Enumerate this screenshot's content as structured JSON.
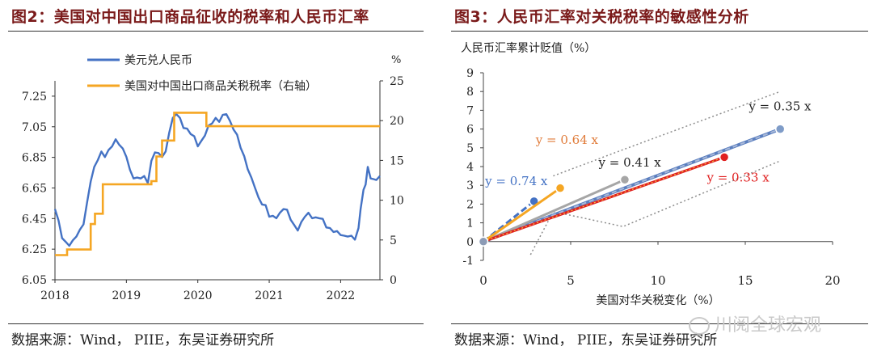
{
  "left": {
    "title": "图2：美国对中国出口商品征收的税率和人民币汇率",
    "source": "数据来源：Wind， PIIE，东吴证券研究所",
    "chart_data": {
      "type": "line",
      "x_ticks": [
        "2018",
        "2019",
        "2020",
        "2021",
        "2022"
      ],
      "y_left": {
        "ticks": [
          "6.05",
          "6.25",
          "6.45",
          "6.65",
          "6.85",
          "7.05",
          "7.25"
        ],
        "range": [
          6.05,
          7.35
        ]
      },
      "y_right": {
        "unit": "%",
        "ticks": [
          "0",
          "5",
          "10",
          "15",
          "20",
          "25"
        ],
        "range": [
          0,
          25
        ]
      },
      "legend_position": "top-left",
      "series": [
        {
          "name": "美元兑人民币",
          "axis": "left",
          "color": "#4472c4",
          "points": [
            [
              2018.0,
              6.52
            ],
            [
              2018.05,
              6.43
            ],
            [
              2018.1,
              6.33
            ],
            [
              2018.15,
              6.29
            ],
            [
              2018.2,
              6.28
            ],
            [
              2018.25,
              6.3
            ],
            [
              2018.3,
              6.34
            ],
            [
              2018.35,
              6.37
            ],
            [
              2018.4,
              6.42
            ],
            [
              2018.45,
              6.55
            ],
            [
              2018.5,
              6.7
            ],
            [
              2018.55,
              6.78
            ],
            [
              2018.6,
              6.84
            ],
            [
              2018.65,
              6.88
            ],
            [
              2018.7,
              6.86
            ],
            [
              2018.75,
              6.89
            ],
            [
              2018.8,
              6.93
            ],
            [
              2018.85,
              6.96
            ],
            [
              2018.9,
              6.94
            ],
            [
              2018.95,
              6.9
            ],
            [
              2019.0,
              6.86
            ],
            [
              2019.05,
              6.76
            ],
            [
              2019.1,
              6.72
            ],
            [
              2019.15,
              6.71
            ],
            [
              2019.2,
              6.72
            ],
            [
              2019.25,
              6.72
            ],
            [
              2019.3,
              6.69
            ],
            [
              2019.35,
              6.82
            ],
            [
              2019.4,
              6.89
            ],
            [
              2019.45,
              6.87
            ],
            [
              2019.5,
              6.86
            ],
            [
              2019.55,
              6.88
            ],
            [
              2019.6,
              7.02
            ],
            [
              2019.65,
              7.1
            ],
            [
              2019.7,
              7.14
            ],
            [
              2019.75,
              7.1
            ],
            [
              2019.8,
              7.05
            ],
            [
              2019.85,
              7.03
            ],
            [
              2019.9,
              7.01
            ],
            [
              2019.95,
              6.98
            ],
            [
              2020.0,
              6.93
            ],
            [
              2020.05,
              6.95
            ],
            [
              2020.1,
              7.0
            ],
            [
              2020.15,
              7.05
            ],
            [
              2020.2,
              7.08
            ],
            [
              2020.25,
              7.1
            ],
            [
              2020.3,
              7.09
            ],
            [
              2020.35,
              7.12
            ],
            [
              2020.4,
              7.14
            ],
            [
              2020.45,
              7.08
            ],
            [
              2020.5,
              7.04
            ],
            [
              2020.55,
              6.99
            ],
            [
              2020.6,
              6.92
            ],
            [
              2020.65,
              6.85
            ],
            [
              2020.7,
              6.78
            ],
            [
              2020.75,
              6.71
            ],
            [
              2020.8,
              6.66
            ],
            [
              2020.85,
              6.58
            ],
            [
              2020.9,
              6.55
            ],
            [
              2020.95,
              6.53
            ],
            [
              2021.0,
              6.47
            ],
            [
              2021.05,
              6.46
            ],
            [
              2021.1,
              6.46
            ],
            [
              2021.15,
              6.48
            ],
            [
              2021.2,
              6.52
            ],
            [
              2021.25,
              6.5
            ],
            [
              2021.3,
              6.45
            ],
            [
              2021.35,
              6.4
            ],
            [
              2021.4,
              6.38
            ],
            [
              2021.45,
              6.42
            ],
            [
              2021.5,
              6.47
            ],
            [
              2021.55,
              6.48
            ],
            [
              2021.6,
              6.46
            ],
            [
              2021.65,
              6.45
            ],
            [
              2021.7,
              6.46
            ],
            [
              2021.75,
              6.44
            ],
            [
              2021.8,
              6.4
            ],
            [
              2021.85,
              6.38
            ],
            [
              2021.9,
              6.37
            ],
            [
              2021.95,
              6.36
            ],
            [
              2022.0,
              6.35
            ],
            [
              2022.05,
              6.33
            ],
            [
              2022.1,
              6.34
            ],
            [
              2022.15,
              6.33
            ],
            [
              2022.2,
              6.32
            ],
            [
              2022.25,
              6.38
            ],
            [
              2022.28,
              6.52
            ],
            [
              2022.32,
              6.63
            ],
            [
              2022.35,
              6.68
            ],
            [
              2022.38,
              6.78
            ],
            [
              2022.42,
              6.72
            ],
            [
              2022.46,
              6.7
            ],
            [
              2022.5,
              6.71
            ],
            [
              2022.55,
              6.72
            ]
          ]
        },
        {
          "name": "美国对中国出口商品关税税率（右轴）",
          "axis": "right",
          "color": "#f5a623",
          "points": [
            [
              2018.0,
              3.1
            ],
            [
              2018.17,
              3.1
            ],
            [
              2018.17,
              3.8
            ],
            [
              2018.5,
              3.8
            ],
            [
              2018.5,
              7.0
            ],
            [
              2018.56,
              7.0
            ],
            [
              2018.56,
              8.3
            ],
            [
              2018.67,
              8.3
            ],
            [
              2018.67,
              12.0
            ],
            [
              2019.35,
              12.0
            ],
            [
              2019.35,
              12.4
            ],
            [
              2019.42,
              12.4
            ],
            [
              2019.42,
              15.5
            ],
            [
              2019.5,
              15.5
            ],
            [
              2019.5,
              17.5
            ],
            [
              2019.67,
              17.5
            ],
            [
              2019.67,
              21.0
            ],
            [
              2020.12,
              21.0
            ],
            [
              2020.12,
              19.3
            ],
            [
              2022.55,
              19.3
            ]
          ]
        }
      ]
    }
  },
  "right": {
    "title": "图3：人民币汇率对关税税率的敏感性分析",
    "source": "数据来源：Wind， PIIE，东吴证券研究所",
    "watermark": "川阅全球宏观",
    "chart_data": {
      "type": "scatter",
      "ylabel": "人民币汇率累计贬值（%）",
      "xlabel": "美国对华关税变化（%）",
      "x_ticks": [
        "0",
        "5",
        "10",
        "15",
        "20"
      ],
      "y_ticks": [
        "-1",
        "0",
        "1",
        "2",
        "3",
        "4",
        "5",
        "6",
        "7",
        "8",
        "9"
      ],
      "xlim": [
        0,
        20
      ],
      "ylim": [
        -1,
        9
      ],
      "series": [
        {
          "color": "#4472c4",
          "label": "y = 0.74 x",
          "end": [
            2.9,
            2.15
          ]
        },
        {
          "color": "#f5a623",
          "label": "y = 0.64 x",
          "end": [
            4.4,
            2.85
          ]
        },
        {
          "color": "#a6a6a6",
          "label": "y = 0.41 x",
          "end": [
            8.1,
            3.3
          ]
        },
        {
          "color": "#7f9cc8",
          "label": "y = 0.35 x",
          "end": [
            17.0,
            6.0
          ]
        },
        {
          "color": "#e02020",
          "label": "y = 0.33 x",
          "end": [
            13.8,
            4.5
          ]
        }
      ]
    }
  }
}
